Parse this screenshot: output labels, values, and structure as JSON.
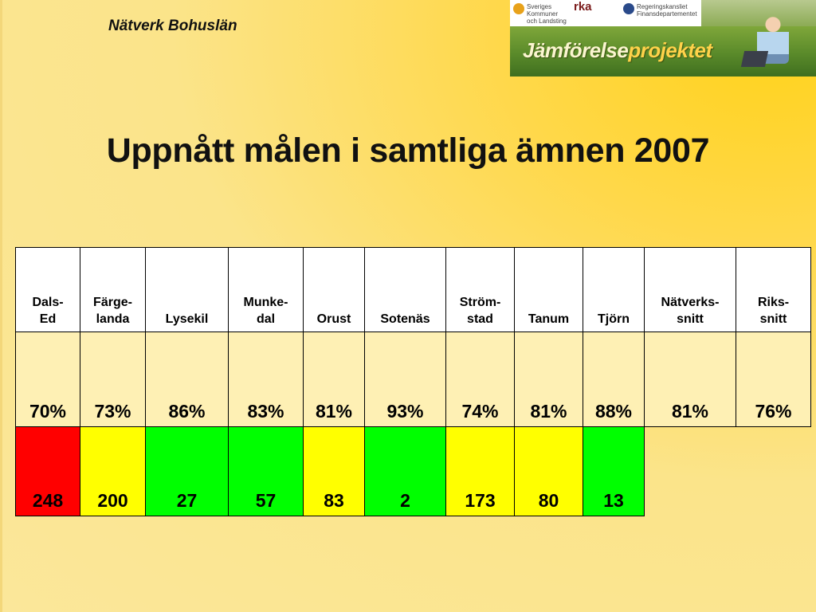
{
  "header": {
    "network_title": "Nätverk Bohuslän",
    "banner": {
      "brand_prefix": "Jämförelse",
      "brand_suffix": "projektet",
      "logos": [
        {
          "name": "Sveriges Kommuner och Landsting",
          "icon": "skl-logo",
          "color": "#e8a21a"
        },
        {
          "name": "rka",
          "icon": "rka-logo",
          "color": "#8b1a1a"
        },
        {
          "name": "Regeringskansliet Finansdepartementet",
          "icon": "government-crest",
          "color": "#2a4a8a"
        }
      ]
    }
  },
  "page_title": "Uppnått målen i samtliga ämnen 2007",
  "table": {
    "columns": [
      {
        "label": "Dals-\nEd",
        "percent": "70%",
        "rank": "248",
        "rank_color": "#ff0000"
      },
      {
        "label": "Färge-\nlanda",
        "percent": "73%",
        "rank": "200",
        "rank_color": "#ffff00"
      },
      {
        "label": "Lysekil",
        "percent": "86%",
        "rank": "27",
        "rank_color": "#00ff00"
      },
      {
        "label": "Munke-\ndal",
        "percent": "83%",
        "rank": "57",
        "rank_color": "#00ff00"
      },
      {
        "label": "Orust",
        "percent": "81%",
        "rank": "83",
        "rank_color": "#ffff00"
      },
      {
        "label": "Sotenäs",
        "percent": "93%",
        "rank": "2",
        "rank_color": "#00ff00"
      },
      {
        "label": "Ström-\nstad",
        "percent": "74%",
        "rank": "173",
        "rank_color": "#ffff00"
      },
      {
        "label": "Tanum",
        "percent": "81%",
        "rank": "80",
        "rank_color": "#ffff00"
      },
      {
        "label": "Tjörn",
        "percent": "88%",
        "rank": "13",
        "rank_color": "#00ff00"
      },
      {
        "label": "Nätverks-\nsnitt",
        "percent": "81%",
        "rank": null,
        "rank_color": null
      },
      {
        "label": "Riks-\nsnitt",
        "percent": "76%",
        "rank": null,
        "rank_color": null
      }
    ]
  }
}
